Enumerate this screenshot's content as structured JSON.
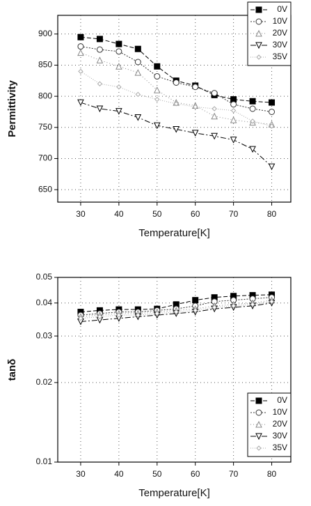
{
  "chart_data": [
    {
      "type": "line",
      "x_label": "Temperature[K]",
      "y_label": "Permittivity",
      "x": [
        30,
        35,
        40,
        45,
        50,
        55,
        60,
        65,
        70,
        75,
        80
      ],
      "xlim": [
        24,
        85
      ],
      "xticks": [
        30,
        40,
        50,
        60,
        70,
        80
      ],
      "ylim": [
        630,
        930
      ],
      "yticks": [
        650,
        700,
        750,
        800,
        850,
        900
      ],
      "grid": true,
      "log_y": false,
      "legend": "top-right",
      "series": [
        {
          "name": "0V",
          "color": "#000000",
          "marker": "square-filled",
          "dash": "6 3",
          "values": [
            895,
            892,
            884,
            876,
            848,
            825,
            817,
            802,
            795,
            792,
            790
          ]
        },
        {
          "name": "10V",
          "color": "#333333",
          "marker": "circle",
          "dash": "2 2",
          "values": [
            880,
            875,
            872,
            855,
            832,
            822,
            815,
            805,
            787,
            780,
            775
          ]
        },
        {
          "name": "20V",
          "color": "#888888",
          "marker": "triangle-up",
          "dash": "1 3",
          "values": [
            870,
            858,
            848,
            838,
            810,
            790,
            785,
            768,
            762,
            758,
            755
          ]
        },
        {
          "name": "30V",
          "color": "#000000",
          "marker": "triangle-down",
          "dash": "8 3 2 3",
          "values": [
            790,
            780,
            776,
            766,
            753,
            747,
            741,
            736,
            730,
            715,
            687
          ]
        },
        {
          "name": "35V",
          "color": "#aaaaaa",
          "marker": "diamond",
          "dash": "1 2",
          "values": [
            840,
            820,
            815,
            803,
            795,
            788,
            783,
            780,
            777,
            760,
            752
          ]
        }
      ]
    },
    {
      "type": "line",
      "x_label": "Temperature[K]",
      "y_label": "tanδ",
      "x": [
        30,
        35,
        40,
        45,
        50,
        55,
        60,
        65,
        70,
        75,
        80
      ],
      "xlim": [
        24,
        85
      ],
      "xticks": [
        30,
        40,
        50,
        60,
        70,
        80
      ],
      "ylim": [
        0.01,
        0.05
      ],
      "yticks": [
        0.01,
        0.02,
        0.03,
        0.04,
        0.05
      ],
      "grid": true,
      "log_y": true,
      "legend": "bottom-right",
      "series": [
        {
          "name": "0V",
          "color": "#000000",
          "marker": "square-filled",
          "dash": "6 3",
          "values": [
            0.037,
            0.0375,
            0.0378,
            0.0378,
            0.038,
            0.0395,
            0.041,
            0.042,
            0.0425,
            0.0428,
            0.043
          ]
        },
        {
          "name": "10V",
          "color": "#333333",
          "marker": "circle",
          "dash": "2 2",
          "values": [
            0.036,
            0.0365,
            0.037,
            0.037,
            0.0375,
            0.038,
            0.039,
            0.0405,
            0.041,
            0.0415,
            0.042
          ]
        },
        {
          "name": "20V",
          "color": "#888888",
          "marker": "triangle-up",
          "dash": "1 3",
          "values": [
            0.0355,
            0.036,
            0.0365,
            0.0365,
            0.037,
            0.0375,
            0.038,
            0.039,
            0.0395,
            0.04,
            0.041
          ]
        },
        {
          "name": "30V",
          "color": "#000000",
          "marker": "triangle-down",
          "dash": "8 3 2 3",
          "values": [
            0.034,
            0.0345,
            0.035,
            0.0355,
            0.036,
            0.0365,
            0.037,
            0.038,
            0.0385,
            0.039,
            0.04
          ]
        },
        {
          "name": "35V",
          "color": "#aaaaaa",
          "marker": "diamond",
          "dash": "1 2",
          "values": [
            0.035,
            0.0355,
            0.036,
            0.036,
            0.0365,
            0.037,
            0.0375,
            0.0385,
            0.039,
            0.0395,
            0.0405
          ]
        }
      ]
    }
  ]
}
